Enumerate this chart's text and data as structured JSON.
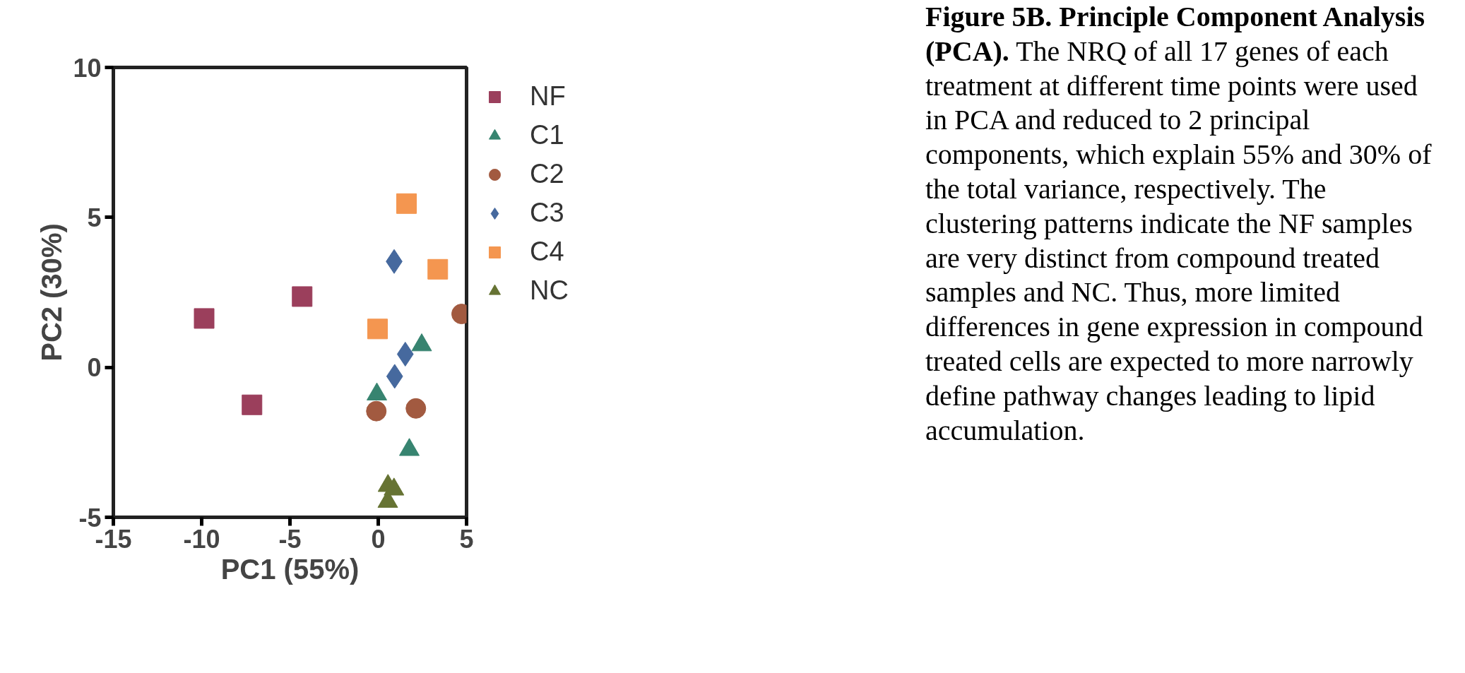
{
  "chart_data": {
    "type": "scatter",
    "title": "Figure 5B. Principle Component Analysis (PCA).",
    "annotations": [
      "The NRQ of all 17 genes of each treatment at different time points were used in PCA and reduced to 2 principal components, which explain 55% and 30% of the total variance, respectively.  The clustering patterns indicate the NF samples are very distinct from compound treated samples and NC.   Thus, more limited differences in gene expression in compound treated cells are expected to more narrowly define pathway changes leading to lipid accumulation."
    ],
    "xlabel": "PC1 (55%)",
    "ylabel": "PC2 (30%)",
    "xlim": [
      -15,
      5
    ],
    "ylim": [
      -5,
      10
    ],
    "xticks": [
      -15,
      -10,
      -5,
      0,
      5
    ],
    "yticks": [
      -5,
      0,
      5,
      10
    ],
    "grid": false,
    "legend": "right",
    "series": [
      {
        "name": "NF",
        "color": "#9b3f5c",
        "marker": "square",
        "x": [
          -9.86,
          -4.31,
          -7.15
        ],
        "values": [
          1.63,
          2.36,
          -1.25
        ]
      },
      {
        "name": "C1",
        "color": "#378470",
        "marker": "triangle",
        "x": [
          -0.08,
          2.46,
          1.76
        ],
        "values": [
          -0.9,
          0.74,
          -2.75
        ]
      },
      {
        "name": "C2",
        "color": "#a25a40",
        "marker": "circle",
        "x": [
          -0.11,
          2.13,
          4.72
        ],
        "values": [
          -1.46,
          -1.37,
          1.78
        ]
      },
      {
        "name": "C3",
        "color": "#46699e",
        "marker": "diamond",
        "x": [
          0.9,
          1.53,
          0.93
        ],
        "values": [
          3.53,
          0.44,
          -0.3
        ]
      },
      {
        "name": "C4",
        "color": "#f49650",
        "marker": "square",
        "x": [
          1.6,
          3.37,
          -0.04
        ],
        "values": [
          5.46,
          3.27,
          1.28
        ]
      },
      {
        "name": "NC",
        "color": "#667333",
        "marker": "triangle",
        "x": [
          0.55,
          0.89,
          0.54
        ],
        "values": [
          -3.95,
          -4.07,
          -4.48
        ]
      }
    ]
  }
}
